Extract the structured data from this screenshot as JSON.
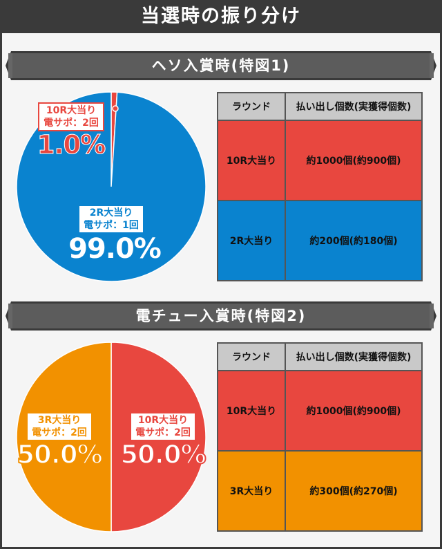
{
  "page_title": "当選時の振り分け",
  "colors": {
    "dark": "#3a3a3a",
    "blue": "#0a83cf",
    "red": "#e8473f",
    "orange": "#f29100",
    "header": "#c9c9c9"
  },
  "sections": [
    {
      "title": "ヘソ入賞時(特図1)",
      "table": {
        "headers": [
          "ラウンド",
          "払い出し個数(実獲得個数)"
        ],
        "rows": [
          {
            "round": "10R大当り",
            "payout": "約1000個(約900個)",
            "color": "#e8473f"
          },
          {
            "round": "2R大当り",
            "payout": "約200個(約180個)",
            "color": "#0a83cf"
          }
        ]
      },
      "slices": [
        {
          "line1": "10R大当り",
          "line2": "電サポ：2回",
          "pct": "1.0%"
        },
        {
          "line1": "2R大当り",
          "line2": "電サポ：1回",
          "pct": "99.0%"
        }
      ]
    },
    {
      "title": "電チュー入賞時(特図2)",
      "table": {
        "headers": [
          "ラウンド",
          "払い出し個数(実獲得個数)"
        ],
        "rows": [
          {
            "round": "10R大当り",
            "payout": "約1000個(約900個)",
            "color": "#e8473f"
          },
          {
            "round": "3R大当り",
            "payout": "約300個(約270個)",
            "color": "#f29100"
          }
        ]
      },
      "slices": [
        {
          "line1": "10R大当り",
          "line2": "電サポ：2回",
          "pct": "50.0%"
        },
        {
          "line1": "3R大当り",
          "line2": "電サポ：2回",
          "pct": "50.0%"
        }
      ]
    }
  ],
  "chart_data": [
    {
      "type": "pie",
      "title": "ヘソ入賞時(特図1)",
      "categories": [
        "10R大当り",
        "2R大当り"
      ],
      "values": [
        1.0,
        99.0
      ],
      "colors": [
        "#e8473f",
        "#0a83cf"
      ]
    },
    {
      "type": "pie",
      "title": "電チュー入賞時(特図2)",
      "categories": [
        "10R大当り",
        "3R大当り"
      ],
      "values": [
        50.0,
        50.0
      ],
      "colors": [
        "#e8473f",
        "#f29100"
      ]
    }
  ]
}
